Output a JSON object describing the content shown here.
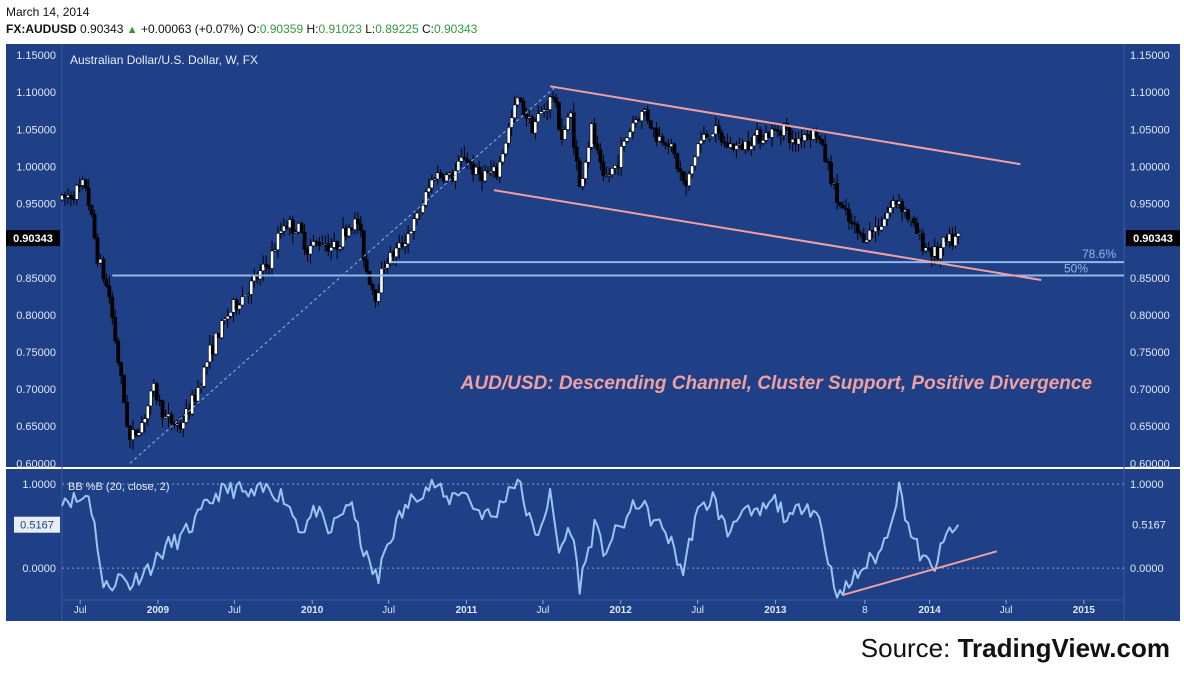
{
  "header": {
    "date": "March 14, 2014",
    "symbol": "FX:AUDUSD",
    "last": "0.90343",
    "change": "+0.00063 (+0.07%)",
    "o_label": "O:",
    "o_value": "0.90359",
    "h_label": "H:",
    "h_value": "0.91023",
    "l_label": "L:",
    "l_value": "0.89225",
    "c_label": "C:",
    "c_value": "0.90343"
  },
  "colors": {
    "background": "#1f4086",
    "candle_up": "#ffffff",
    "candle_down": "#000000",
    "channel": "#f0a0a0",
    "fib_lines": "#8fb8e8",
    "oscillator": "#9cc4f0",
    "annotation": "#f0a0a0",
    "header_green": "#2e9e3a"
  },
  "chart_data": [
    {
      "type": "candlestick",
      "title": "Australian Dollar/U.S. Dollar, W, FX",
      "ylim": [
        0.595,
        1.165
      ],
      "y_ticks": [
        "0.60000",
        "0.65000",
        "0.70000",
        "0.75000",
        "0.80000",
        "0.85000",
        "0.90000",
        "0.95000",
        "1.00000",
        "1.05000",
        "1.10000",
        "1.15000"
      ],
      "x_ticks": [
        "Jul",
        "2009",
        "Jul",
        "2010",
        "Jul",
        "2011",
        "Jul",
        "2012",
        "Jul",
        "2013",
        "8",
        "2014",
        "Jul",
        "2015"
      ],
      "x_tick_dates": [
        "2008-07-01",
        "2009-01-01",
        "2009-07-01",
        "2010-01-01",
        "2010-07-01",
        "2011-01-01",
        "2011-07-01",
        "2012-01-01",
        "2012-07-01",
        "2013-01-01",
        "2013-08-01",
        "2014-01-01",
        "2014-07-01",
        "2015-01-01"
      ],
      "xlim": [
        "2008-05-19",
        "2015-04-06"
      ],
      "last_price_label": "0.90343",
      "anchors": [
        [
          "2008-05-19",
          0.955
        ],
        [
          "2008-07-14",
          0.975
        ],
        [
          "2008-08-11",
          0.88
        ],
        [
          "2008-09-08",
          0.825
        ],
        [
          "2008-10-06",
          0.71
        ],
        [
          "2008-10-27",
          0.63
        ],
        [
          "2008-11-24",
          0.655
        ],
        [
          "2008-12-22",
          0.7
        ],
        [
          "2009-01-19",
          0.66
        ],
        [
          "2009-02-23",
          0.65
        ],
        [
          "2009-03-30",
          0.69
        ],
        [
          "2009-05-04",
          0.75
        ],
        [
          "2009-06-15",
          0.8
        ],
        [
          "2009-08-03",
          0.835
        ],
        [
          "2009-09-21",
          0.87
        ],
        [
          "2009-10-26",
          0.925
        ],
        [
          "2009-11-30",
          0.915
        ],
        [
          "2009-12-21",
          0.89
        ],
        [
          "2010-01-25",
          0.9
        ],
        [
          "2010-02-22",
          0.89
        ],
        [
          "2010-03-29",
          0.92
        ],
        [
          "2010-04-19",
          0.925
        ],
        [
          "2010-05-10",
          0.86
        ],
        [
          "2010-05-31",
          0.825
        ],
        [
          "2010-06-21",
          0.87
        ],
        [
          "2010-07-26",
          0.89
        ],
        [
          "2010-09-06",
          0.93
        ],
        [
          "2010-10-18",
          0.99
        ],
        [
          "2010-11-29",
          0.985
        ],
        [
          "2010-12-27",
          1.015
        ],
        [
          "2011-01-24",
          0.99
        ],
        [
          "2011-03-14",
          0.99
        ],
        [
          "2011-04-11",
          1.05
        ],
        [
          "2011-05-02",
          1.09
        ],
        [
          "2011-06-06",
          1.055
        ],
        [
          "2011-07-25",
          1.095
        ],
        [
          "2011-08-15",
          1.04
        ],
        [
          "2011-09-05",
          1.07
        ],
        [
          "2011-09-26",
          0.97
        ],
        [
          "2011-10-24",
          1.05
        ],
        [
          "2011-11-21",
          0.98
        ],
        [
          "2011-12-19",
          1.0
        ],
        [
          "2012-01-30",
          1.06
        ],
        [
          "2012-02-27",
          1.075
        ],
        [
          "2012-03-26",
          1.04
        ],
        [
          "2012-04-23",
          1.035
        ],
        [
          "2012-05-21",
          0.99
        ],
        [
          "2012-06-04",
          0.97
        ],
        [
          "2012-07-02",
          1.03
        ],
        [
          "2012-08-06",
          1.05
        ],
        [
          "2012-09-03",
          1.03
        ],
        [
          "2012-10-08",
          1.025
        ],
        [
          "2012-11-12",
          1.04
        ],
        [
          "2012-12-24",
          1.045
        ],
        [
          "2013-01-21",
          1.055
        ],
        [
          "2013-02-11",
          1.03
        ],
        [
          "2013-03-11",
          1.045
        ],
        [
          "2013-04-08",
          1.045
        ],
        [
          "2013-05-06",
          1.0
        ],
        [
          "2013-05-27",
          0.955
        ],
        [
          "2013-06-24",
          0.925
        ],
        [
          "2013-07-22",
          0.905
        ],
        [
          "2013-08-12",
          0.91
        ],
        [
          "2013-09-09",
          0.925
        ],
        [
          "2013-10-07",
          0.95
        ],
        [
          "2013-10-21",
          0.955
        ],
        [
          "2013-11-18",
          0.925
        ],
        [
          "2013-12-16",
          0.895
        ],
        [
          "2014-01-20",
          0.88
        ],
        [
          "2014-02-03",
          0.895
        ],
        [
          "2014-03-10",
          0.903
        ]
      ],
      "trendlines": {
        "channel_upper": [
          [
            "2011-07-18",
            1.108
          ],
          [
            "2014-08-04",
            1.003
          ]
        ],
        "channel_lower": [
          [
            "2011-03-07",
            0.968
          ],
          [
            "2014-09-22",
            0.847
          ]
        ],
        "fib_786": {
          "label": "78.6%",
          "value": 0.871,
          "from": "2010-07-05"
        },
        "fib_50": {
          "label": "50%",
          "value": 0.853,
          "from": "2008-09-15"
        },
        "fib_diagonal": [
          [
            "2008-10-27",
            0.6
          ],
          [
            "2011-08-01",
            1.108
          ]
        ]
      },
      "annotation": "AUD/USD: Descending Channel, Cluster Support, Positive Divergence"
    },
    {
      "type": "line",
      "title": "BB %B (20, close, 2)",
      "ylim": [
        -0.38,
        1.18
      ],
      "y_ticks": [
        "0.0000",
        "1.0000"
      ],
      "last_value_label": "0.5167",
      "guide_levels": [
        0,
        1
      ],
      "anchors": [
        [
          "2008-05-19",
          0.85
        ],
        [
          "2008-06-30",
          0.8
        ],
        [
          "2008-07-21",
          0.9
        ],
        [
          "2008-08-11",
          0.3
        ],
        [
          "2008-08-25",
          -0.25
        ],
        [
          "2008-10-06",
          -0.1
        ],
        [
          "2008-10-27",
          -0.2
        ],
        [
          "2008-11-24",
          -0.05
        ],
        [
          "2008-12-22",
          0.05
        ],
        [
          "2009-01-19",
          0.25
        ],
        [
          "2009-02-23",
          0.35
        ],
        [
          "2009-03-30",
          0.55
        ],
        [
          "2009-04-27",
          0.75
        ],
        [
          "2009-05-25",
          0.9
        ],
        [
          "2009-07-06",
          0.95
        ],
        [
          "2009-08-03",
          0.85
        ],
        [
          "2009-09-21",
          0.95
        ],
        [
          "2009-10-26",
          0.85
        ],
        [
          "2009-12-07",
          0.45
        ],
        [
          "2010-01-11",
          0.7
        ],
        [
          "2010-02-08",
          0.4
        ],
        [
          "2010-03-29",
          0.8
        ],
        [
          "2010-05-10",
          0.1
        ],
        [
          "2010-06-07",
          -0.15
        ],
        [
          "2010-06-21",
          0.2
        ],
        [
          "2010-07-26",
          0.6
        ],
        [
          "2010-09-06",
          0.9
        ],
        [
          "2010-10-18",
          1.0
        ],
        [
          "2010-11-15",
          0.8
        ],
        [
          "2010-12-20",
          0.95
        ],
        [
          "2011-01-24",
          0.7
        ],
        [
          "2011-03-07",
          0.6
        ],
        [
          "2011-04-11",
          0.95
        ],
        [
          "2011-05-02",
          1.05
        ],
        [
          "2011-06-13",
          0.35
        ],
        [
          "2011-07-18",
          0.85
        ],
        [
          "2011-08-08",
          0.2
        ],
        [
          "2011-09-05",
          0.5
        ],
        [
          "2011-09-26",
          -0.2
        ],
        [
          "2011-10-31",
          0.5
        ],
        [
          "2011-11-21",
          0.2
        ],
        [
          "2011-12-19",
          0.4
        ],
        [
          "2012-02-13",
          0.8
        ],
        [
          "2012-03-19",
          0.55
        ],
        [
          "2012-04-16",
          0.45
        ],
        [
          "2012-05-28",
          -0.05
        ],
        [
          "2012-06-25",
          0.6
        ],
        [
          "2012-08-06",
          0.85
        ],
        [
          "2012-09-10",
          0.4
        ],
        [
          "2012-10-08",
          0.7
        ],
        [
          "2012-11-12",
          0.6
        ],
        [
          "2012-12-31",
          0.8
        ],
        [
          "2013-02-04",
          0.55
        ],
        [
          "2013-03-11",
          0.8
        ],
        [
          "2013-04-15",
          0.6
        ],
        [
          "2013-05-13",
          -0.05
        ],
        [
          "2013-06-03",
          -0.35
        ],
        [
          "2013-07-01",
          -0.15
        ],
        [
          "2013-08-05",
          0.05
        ],
        [
          "2013-09-09",
          0.2
        ],
        [
          "2013-10-07",
          0.7
        ],
        [
          "2013-10-21",
          0.95
        ],
        [
          "2013-11-18",
          0.4
        ],
        [
          "2013-12-16",
          0.1
        ],
        [
          "2014-01-06",
          0.0
        ],
        [
          "2014-01-20",
          0.1
        ],
        [
          "2014-02-17",
          0.45
        ],
        [
          "2014-03-10",
          0.5167
        ]
      ],
      "trendlines": {
        "divergence": [
          [
            "2013-06-10",
            -0.32
          ],
          [
            "2014-06-09",
            0.2
          ]
        ]
      }
    }
  ],
  "source": {
    "prefix": "Source: ",
    "brand": "TradingView.com"
  }
}
